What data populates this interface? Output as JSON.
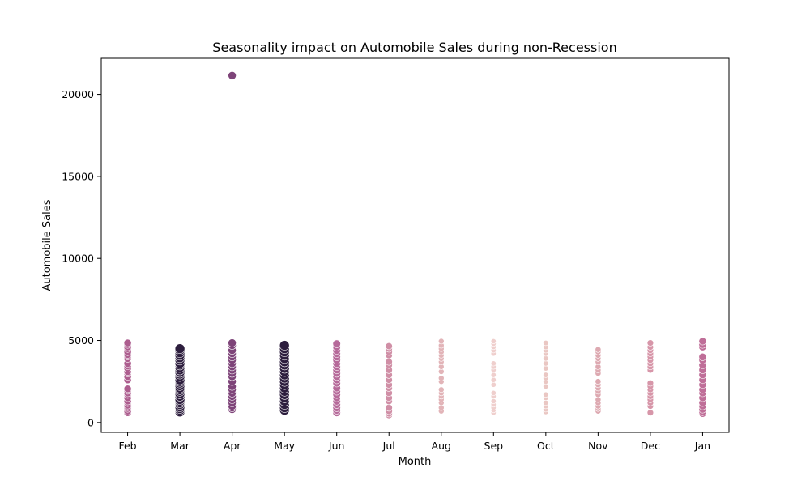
{
  "chart_data": {
    "type": "scatter",
    "title": "Seasonality impact on Automobile Sales during non-Recession",
    "xlabel": "Month",
    "ylabel": "Automobile Sales",
    "categories": [
      "Feb",
      "Mar",
      "Apr",
      "May",
      "Jun",
      "Jul",
      "Aug",
      "Sep",
      "Oct",
      "Nov",
      "Dec",
      "Jan"
    ],
    "ylim": [
      -600,
      22200
    ],
    "yticks": [
      0,
      5000,
      10000,
      15000,
      20000
    ],
    "grid": false,
    "legend": "none",
    "colors": {
      "Feb": "#ad5e8f",
      "Mar": "#2d1e3e",
      "Apr": "#7e4479",
      "May": "#2d1e3e",
      "Jun": "#b66a9a",
      "Jul": "#d08fa6",
      "Aug": "#e2b4b8",
      "Sep": "#efcfcd",
      "Oct": "#eac7c3",
      "Nov": "#dda9b1",
      "Dec": "#d796a9",
      "Jan": "#bf6e98"
    },
    "marker_size": {
      "Feb": 4.6,
      "Mar": 6.0,
      "Apr": 5.0,
      "May": 6.0,
      "Jun": 4.8,
      "Jul": 4.3,
      "Aug": 3.5,
      "Sep": 3.2,
      "Oct": 3.3,
      "Nov": 3.6,
      "Dec": 3.9,
      "Jan": 4.6
    },
    "points": {
      "Feb": [
        600,
        700,
        850,
        950,
        1050,
        1200,
        1300,
        1500,
        1700,
        1800,
        1950,
        2050,
        2600,
        2800,
        3000,
        3100,
        3300,
        3450,
        3600,
        3900,
        4050,
        4150,
        4300,
        4500,
        4600,
        4750,
        4850
      ],
      "Mar": [
        650,
        750,
        850,
        950,
        1100,
        1200,
        1300,
        1400,
        1600,
        1750,
        1900,
        2000,
        2100,
        2250,
        2400,
        2500,
        2600,
        2800,
        2950,
        3050,
        3200,
        3350,
        3500,
        3600,
        3800,
        3950,
        4100,
        4250,
        4400,
        4500
      ],
      "Apr": [
        800,
        900,
        1000,
        1200,
        1400,
        1600,
        1800,
        2000,
        2200,
        2500,
        2800,
        3000,
        3200,
        3400,
        3600,
        3800,
        4000,
        4200,
        4400,
        4700,
        4850,
        21150
      ],
      "May": [
        750,
        900,
        1100,
        1300,
        1500,
        1700,
        1900,
        2100,
        2300,
        2500,
        2700,
        2900,
        3100,
        3300,
        3500,
        3700,
        3900,
        4100,
        4300,
        4500,
        4700
      ],
      "Jun": [
        600,
        750,
        900,
        1100,
        1300,
        1500,
        1700,
        1900,
        2100,
        2400,
        2600,
        2800,
        3000,
        3200,
        3400,
        3600,
        3800,
        4000,
        4200,
        4400,
        4600,
        4800
      ],
      "Jul": [
        450,
        550,
        700,
        900,
        1300,
        1500,
        1800,
        2100,
        2300,
        2600,
        2900,
        3200,
        3500,
        3700,
        4100,
        4300,
        4500,
        4650
      ],
      "Aug": [
        700,
        900,
        1200,
        1400,
        1600,
        1800,
        2000,
        2500,
        2700,
        3100,
        3400,
        3700,
        3900,
        4100,
        4300,
        4500,
        4700,
        4950
      ],
      "Sep": [
        600,
        750,
        900,
        1100,
        1300,
        1600,
        1800,
        2300,
        2600,
        2900,
        3200,
        3400,
        3600,
        4200,
        4400,
        4600,
        4800,
        4950
      ],
      "Oct": [
        650,
        800,
        1000,
        1200,
        1500,
        1700,
        2200,
        2500,
        2700,
        2900,
        3300,
        3600,
        3900,
        4200,
        4400,
        4600,
        4850
      ],
      "Nov": [
        700,
        850,
        1000,
        1200,
        1400,
        1700,
        1900,
        2100,
        2300,
        2500,
        3000,
        3200,
        3400,
        3700,
        3900,
        4100,
        4300,
        4450
      ],
      "Dec": [
        600,
        1000,
        1200,
        1400,
        1600,
        1800,
        2000,
        2200,
        2400,
        3200,
        3400,
        3600,
        3800,
        4000,
        4200,
        4400,
        4600,
        4850
      ],
      "Jan": [
        550,
        650,
        800,
        1000,
        1200,
        1500,
        1800,
        2000,
        2300,
        2600,
        2900,
        3200,
        3500,
        3800,
        4000,
        4600,
        4750,
        4950
      ]
    }
  }
}
